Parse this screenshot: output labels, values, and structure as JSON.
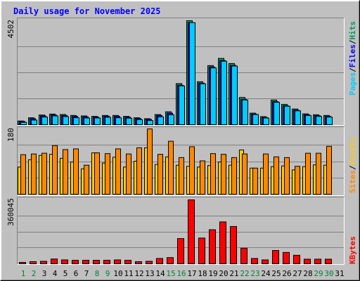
{
  "title": "Daily usage for November 2025",
  "side_labels": {
    "pages": "Pages",
    "files": "Files",
    "hits": "Hits",
    "sites": "Sites",
    "visits": "Visits",
    "kbytes": "KBytes",
    "sep": "/"
  },
  "colors": {
    "background": "#c0c0c0",
    "title": "#0000ff",
    "hits": "#009966",
    "files": "#0000ff",
    "pages": "#00ccff",
    "sites": "#ff8800",
    "visits": "#ffcc00",
    "kbytes": "#ff0000",
    "weekend_label": "#008040"
  },
  "chart_data": [
    {
      "type": "bar",
      "title": "Daily usage for November 2025",
      "panel": "hits-files-pages",
      "axis_max_label": "4502",
      "ylim": [
        0,
        4502
      ],
      "categories": [
        "1",
        "2",
        "3",
        "4",
        "5",
        "6",
        "7",
        "8",
        "9",
        "10",
        "11",
        "12",
        "13",
        "14",
        "15",
        "16",
        "17",
        "18",
        "19",
        "20",
        "21",
        "22",
        "23",
        "24",
        "25",
        "26",
        "27",
        "28",
        "29",
        "30",
        "31"
      ],
      "weekend_days": [
        "1",
        "2",
        "8",
        "9",
        "15",
        "16",
        "22",
        "23",
        "29",
        "30"
      ],
      "series": [
        {
          "name": "Hits",
          "values": [
            160,
            300,
            420,
            460,
            440,
            400,
            380,
            360,
            400,
            400,
            360,
            300,
            260,
            440,
            560,
            1780,
            4502,
            1860,
            2560,
            2870,
            2650,
            1180,
            500,
            350,
            1070,
            880,
            680,
            470,
            430,
            400,
            0
          ]
        },
        {
          "name": "Files",
          "values": [
            140,
            260,
            380,
            420,
            400,
            360,
            340,
            330,
            370,
            360,
            330,
            270,
            230,
            400,
            500,
            1710,
            4420,
            1800,
            2500,
            2780,
            2570,
            1100,
            460,
            310,
            1000,
            820,
            630,
            430,
            390,
            360,
            0
          ]
        },
        {
          "name": "Pages",
          "values": [
            100,
            200,
            330,
            380,
            350,
            300,
            290,
            290,
            320,
            300,
            280,
            220,
            180,
            340,
            430,
            1680,
            4420,
            1770,
            2460,
            2750,
            2540,
            1070,
            440,
            290,
            970,
            800,
            600,
            400,
            360,
            330,
            0
          ]
        }
      ]
    },
    {
      "type": "bar",
      "panel": "sites-visits",
      "axis_max_label": "180",
      "ylim": [
        0,
        180
      ],
      "categories": [
        "1",
        "2",
        "3",
        "4",
        "5",
        "6",
        "7",
        "8",
        "9",
        "10",
        "11",
        "12",
        "13",
        "14",
        "15",
        "16",
        "17",
        "18",
        "19",
        "20",
        "21",
        "22",
        "23",
        "24",
        "25",
        "26",
        "27",
        "28",
        "29",
        "30",
        "31"
      ],
      "series": [
        {
          "name": "Sites",
          "values": [
            109,
            111,
            113,
            134,
            123,
            125,
            80,
            114,
            112,
            125,
            111,
            128,
            180,
            110,
            146,
            101,
            131,
            92,
            112,
            110,
            101,
            111,
            72,
            111,
            103,
            101,
            77,
            113,
            113,
            132,
            0
          ]
        },
        {
          "name": "Visits",
          "values": [
            75,
            95,
            107,
            110,
            99,
            89,
            70,
            114,
            86,
            102,
            75,
            91,
            128,
            82,
            103,
            80,
            77,
            75,
            79,
            89,
            80,
            122,
            72,
            72,
            76,
            78,
            67,
            76,
            81,
            80,
            0
          ]
        }
      ]
    },
    {
      "type": "bar",
      "panel": "kbytes",
      "axis_max_label": "360045",
      "ylim": [
        0,
        360045
      ],
      "categories": [
        "1",
        "2",
        "3",
        "4",
        "5",
        "6",
        "7",
        "8",
        "9",
        "10",
        "11",
        "12",
        "13",
        "14",
        "15",
        "16",
        "17",
        "18",
        "19",
        "20",
        "21",
        "22",
        "23",
        "24",
        "25",
        "26",
        "27",
        "28",
        "29",
        "30",
        "31"
      ],
      "series": [
        {
          "name": "KBytes",
          "values": [
            8000,
            12000,
            14000,
            27000,
            22000,
            20000,
            20000,
            20000,
            20000,
            22000,
            20000,
            12000,
            14000,
            30000,
            35000,
            142000,
            360045,
            145000,
            192000,
            236000,
            210000,
            88000,
            30000,
            22000,
            75000,
            64000,
            48000,
            26000,
            26000,
            26000,
            0
          ]
        }
      ]
    }
  ]
}
